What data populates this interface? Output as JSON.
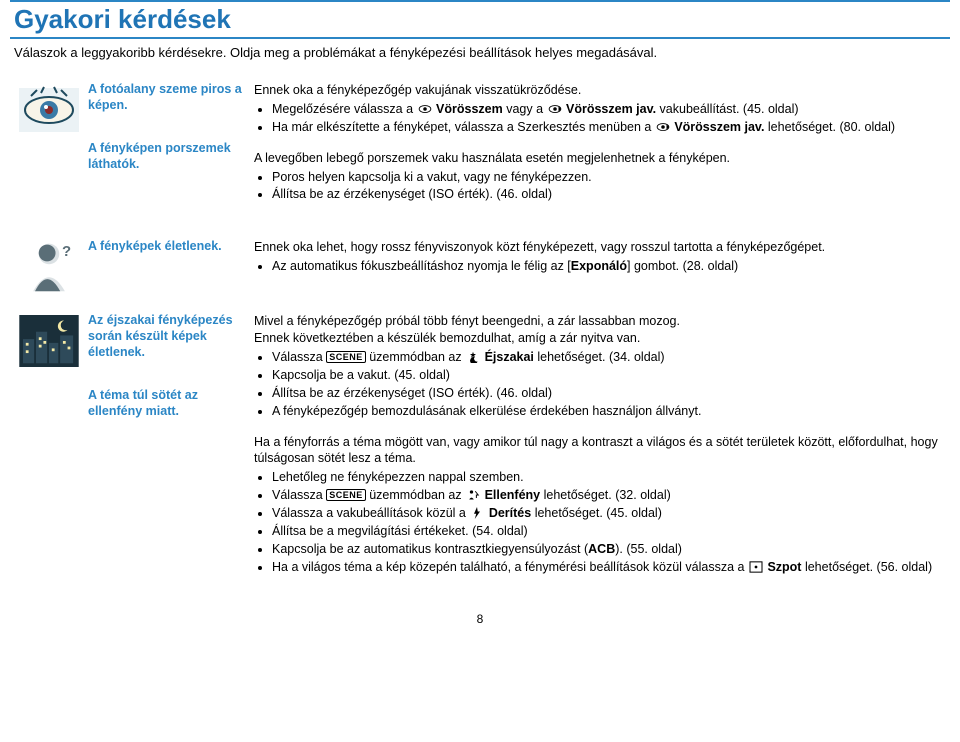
{
  "header": {
    "title": "Gyakori kérdések",
    "subtitle": "Válaszok a leggyakoribb kérdésekre. Oldja meg a problémákat a fényképezési beállítások helyes megadásával."
  },
  "pageNumber": "8",
  "groups": [
    {
      "icon": "eye",
      "items": [
        {
          "q": "A fotóalany szeme piros a képen.",
          "intro": "Ennek oka a fényképezőgép vakujának visszatükröződése.",
          "bullets_html": [
            "Megelőzésére válassza a <svg class=\"inline-icon\" viewBox=\"0 0 24 16\"><ellipse cx=\"12\" cy=\"8\" rx=\"10\" ry=\"6\" fill=\"none\" stroke=\"#000\" stroke-width=\"1.5\"/><circle cx=\"12\" cy=\"8\" r=\"3\" fill=\"#000\"/></svg> <b>Vörösszem</b> vagy a <svg class=\"inline-icon\" viewBox=\"0 0 24 16\"><ellipse cx=\"12\" cy=\"8\" rx=\"10\" ry=\"6\" fill=\"none\" stroke=\"#000\" stroke-width=\"1.5\"/><circle cx=\"12\" cy=\"8\" r=\"3\" fill=\"#000\"/><path d=\"M18 3 l4 5 -4 5\" fill=\"#000\"/></svg> <b>Vörösszem jav.</b> vakubeállítást. (45. oldal)",
            "Ha már elkészítette a fényképet, válassza a Szerkesztés menüben a <svg class=\"inline-icon\" viewBox=\"0 0 24 16\"><ellipse cx=\"12\" cy=\"8\" rx=\"10\" ry=\"6\" fill=\"none\" stroke=\"#000\" stroke-width=\"1.5\"/><circle cx=\"12\" cy=\"8\" r=\"3\" fill=\"#000\"/><path d=\"M18 3 l4 5 -4 5\" fill=\"#000\"/></svg> <b>Vörösszem jav.</b> lehetőséget. (80. oldal)"
          ]
        },
        {
          "q": "A fényképen porszemek láthatók.",
          "intro": "A levegőben lebegő porszemek vaku használata esetén megjelenhetnek a fényképen.",
          "bullets_html": [
            "Poros helyen kapcsolja ki a vakut, vagy ne fényképezzen.",
            "Állítsa be az érzékenységet (ISO érték). (46. oldal)"
          ]
        }
      ]
    },
    {
      "icon": "blur-person",
      "items": [
        {
          "q": "A fényképek életlenek.",
          "intro": "Ennek oka lehet, hogy rossz fényviszonyok közt fényképezett, vagy rosszul tartotta a fényképezőgépet.",
          "bullets_html": [
            "Az automatikus fókuszbeállításhoz nyomja le félig az [<b>Exponáló</b>] gombot. (28. oldal)"
          ]
        }
      ]
    },
    {
      "icon": "night-city",
      "items": [
        {
          "q": "Az éjszakai fényképezés során készült képek életlenek.",
          "intro_html": "Mivel a fényképezőgép próbál több fényt beengedni, a zár lassabban mozog.<br>Ennek következtében a készülék bemozdulhat, amíg a zár nyitva van.",
          "bullets_html": [
            "Válassza <span class=\"scene-ic\">SCENE</span> üzemmódban az <svg class=\"inline-icon\" viewBox=\"0 0 16 16\"><path d=\"M8 1 l1 3 3 0 -2.4 2 1 3 -2.6 -2 -2.6 2 1 -3 -2.4 -2 3 0z\" fill=\"#000\"/><path d=\"M10 8 a5 5 0 1 0 4 6 a4 4 0 0 1 -4 -6z\" fill=\"#000\"/></svg> <b>Éjszakai</b> lehetőséget. (34. oldal)",
            "Kapcsolja be a vakut. (45. oldal)",
            "Állítsa be az érzékenységet (ISO érték). (46. oldal)",
            "A fényképezőgép bemozdulásának elkerülése érdekében használjon állványt."
          ]
        },
        {
          "q": "A téma túl sötét az ellenfény miatt.",
          "intro_html": "Ha a fényforrás a téma mögött van, vagy amikor túl nagy a kontraszt a világos és a sötét területek között, előfordulhat, hogy túlságosan sötét lesz a téma.",
          "bullets_html": [
            "Lehetőleg ne fényképezzen nappal szemben.",
            "Válassza <span class=\"scene-ic\">SCENE</span> üzemmódban az <svg class=\"inline-icon\" viewBox=\"0 0 16 16\"><circle cx=\"6\" cy=\"4\" r=\"2.2\" fill=\"#000\"/><path d=\"M3 14 q3 -5 6 0z\" fill=\"#000\"/><path d=\"M9 2 l5 6 -3 0 0 4 -4 0 0 -4 -3 0z\" fill=\"none\"/><path d=\"M11 3 l4 5 -2.5 0 0 4\" stroke=\"#000\" fill=\"none\" stroke-width=\"1.3\"/></svg> <b>Ellenfény</b> lehetőséget. (32. oldal)",
            "Válassza a vakubeállítások közül a <svg class=\"inline-icon\" viewBox=\"0 0 12 16\"><path d=\"M6 0 L2 9 h3 L3 16 L10 6 h-3 z\" fill=\"#000\"/></svg> <b>Derítés</b> lehetőséget. (45. oldal)",
            "Állítsa be a megvilágítási értékeket. (54. oldal)",
            "Kapcsolja be az automatikus kontrasztkiegyensúlyozást (<b>ACB</b>). (55. oldal)",
            "Ha a világos téma a kép közepén található, a fénymérési beállítások közül válassza a <svg class=\"inline-icon\" viewBox=\"0 0 16 14\"><rect x=\"1\" y=\"1\" width=\"14\" height=\"12\" fill=\"none\" stroke=\"#000\" stroke-width=\"1.2\"/><circle cx=\"8\" cy=\"7\" r=\"1.6\" fill=\"#000\"/></svg> <b>Szpot</b> lehetőséget. (56. oldal)"
          ]
        }
      ]
    }
  ]
}
